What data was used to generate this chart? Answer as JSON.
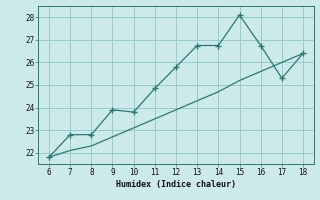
{
  "title": "",
  "xlabel": "Humidex (Indice chaleur)",
  "line1_x": [
    6,
    7,
    8,
    9,
    10,
    11,
    12,
    13,
    14,
    15,
    16,
    17,
    18
  ],
  "line1_y": [
    21.8,
    22.8,
    22.8,
    23.9,
    23.8,
    24.85,
    25.8,
    26.75,
    26.75,
    28.1,
    26.75,
    25.3,
    26.4
  ],
  "line2_x": [
    6,
    7,
    8,
    9,
    10,
    11,
    12,
    13,
    14,
    15,
    16,
    17,
    18
  ],
  "line2_y": [
    21.8,
    22.1,
    22.3,
    22.7,
    23.1,
    23.5,
    23.9,
    24.3,
    24.7,
    25.2,
    25.6,
    26.0,
    26.4
  ],
  "line_color": "#2a7a72",
  "bg_color": "#cceaea",
  "grid_color": "#99cccc",
  "ylim": [
    21.5,
    28.5
  ],
  "xlim": [
    5.5,
    18.5
  ],
  "yticks": [
    22,
    23,
    24,
    25,
    26,
    27,
    28
  ],
  "xticks": [
    6,
    7,
    8,
    9,
    10,
    11,
    12,
    13,
    14,
    15,
    16,
    17,
    18
  ],
  "marker": "+"
}
